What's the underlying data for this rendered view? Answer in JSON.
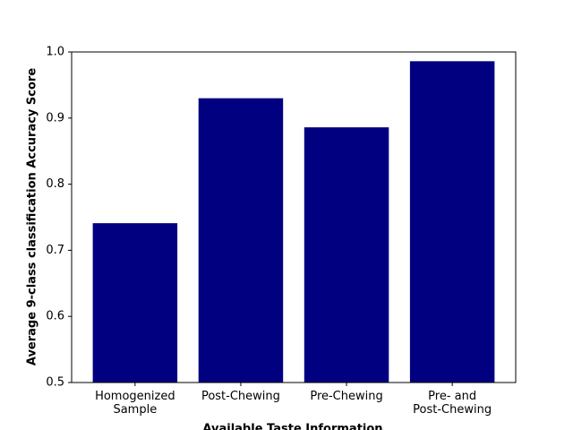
{
  "chart_data": {
    "type": "bar",
    "categories": [
      "Homogenized\nSample",
      "Post-Chewing",
      "Pre-Chewing",
      "Pre- and\nPost-Chewing"
    ],
    "values": [
      0.741,
      0.93,
      0.886,
      0.986
    ],
    "color": "#000080",
    "xlabel": "Available Taste Information",
    "ylabel": "Average 9-class classification Accuracy Score",
    "ylim": [
      0.5,
      1.0
    ],
    "yticks": [
      0.5,
      0.6,
      0.7,
      0.8,
      0.9,
      {
        "value": 1.0,
        "label": "1.0"
      }
    ],
    "grid": false
  }
}
